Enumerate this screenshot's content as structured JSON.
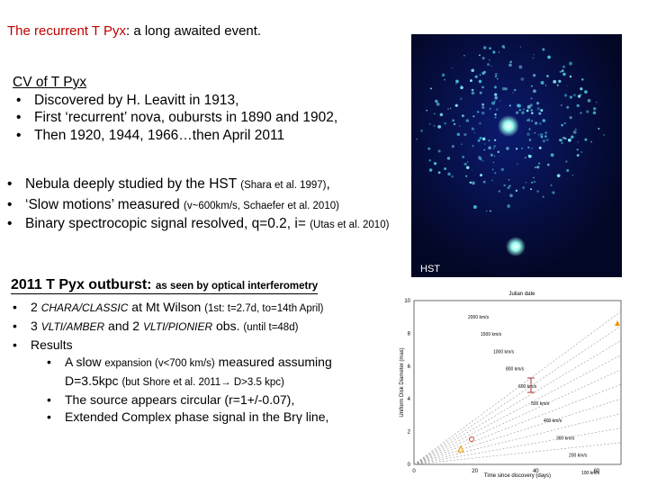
{
  "title": {
    "main": "The recurrent T Pyx",
    "rest": ": a long awaited event."
  },
  "cv": {
    "heading": "CV of T Pyx",
    "items": [
      "Discovered by H. Leavitt in 1913,",
      "First ‘recurrent’ nova, oubursts in 1890 and 1902,",
      "Then 1920, 1944, 1966…then April 2011"
    ]
  },
  "nebula": {
    "items": [
      {
        "main": "Nebula deeply studied by the HST",
        "note": "(Shara et al. 1997)",
        "tail": ","
      },
      {
        "main": "‘Slow motions’ measured",
        "note": "(v~600km/s, Schaefer et al. 2010)"
      },
      {
        "main": "Binary spectrocopic signal resolved, q=0.2, i=",
        "note": "(Utas et al. 2010)"
      }
    ]
  },
  "outburst": {
    "heading": "2011 T Pyx outburst:",
    "subheading": "as seen by optical interferometry",
    "items": [
      [
        "2 ",
        "CHARA/CLASSIC",
        " at Mt Wilson ",
        "(1st: t=2.7d, to=14th April)"
      ],
      [
        "3 ",
        "VLTI/AMBER",
        " and 2 ",
        "VLTI/PIONIER",
        " obs. ",
        "(until t=48d)"
      ],
      [
        "Results"
      ]
    ],
    "subitems": [
      [
        "A slow ",
        "expansion  (v<700 km/s)",
        " measured assuming D=3.5kpc ",
        "(but Shore et al. 2011→ D>3.5 kpc)"
      ],
      [
        "The source appears circular (r=1+/-0.07),"
      ],
      [
        "Extended Complex phase signal in the Brγ line,"
      ]
    ]
  },
  "image": {
    "label": "HST"
  },
  "plot": {
    "top_label": "Julian date",
    "x_label": "Time since discovery (days)",
    "y_label": "Uniform Disk Diameter (mas)",
    "xticks": [
      "0",
      "20",
      "40",
      "60"
    ],
    "yticks": [
      "0",
      "2",
      "4",
      "6",
      "8",
      "10"
    ],
    "speeds": [
      "2000 km/s",
      "1500 km/s",
      "1000 km/s",
      "800 km/s",
      "600 km/s",
      "500 km/s",
      "400 km/s",
      "300 km/s",
      "200 km/s",
      "100 km/s"
    ]
  }
}
